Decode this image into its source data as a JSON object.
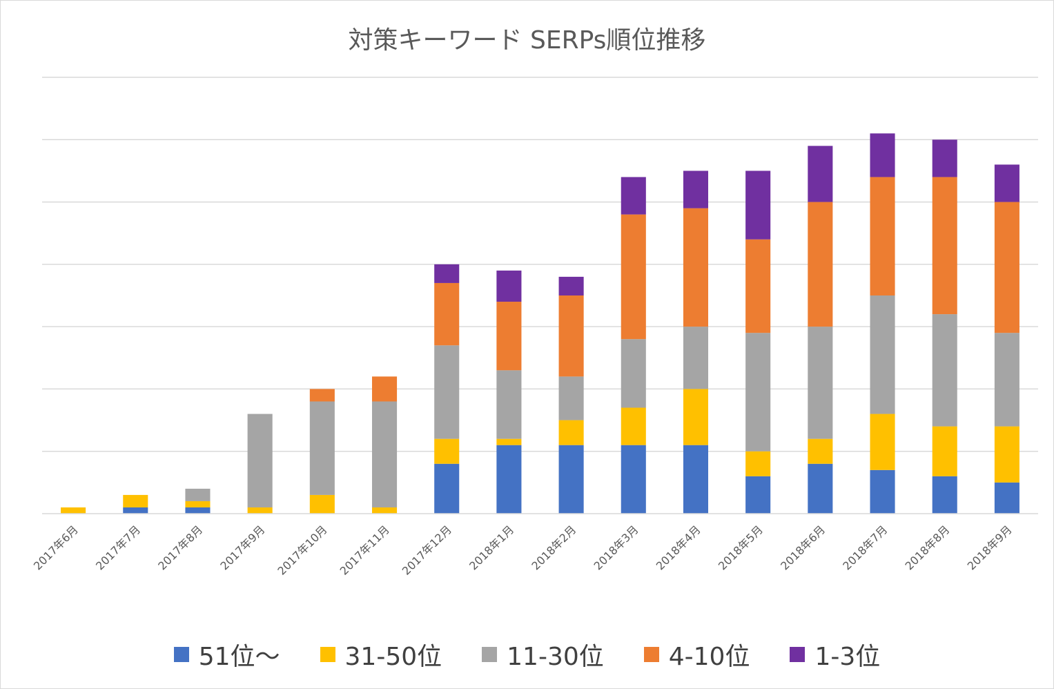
{
  "chart_data": {
    "type": "bar",
    "stacked": true,
    "title": "対策キーワード SERPs順位推移",
    "xlabel": "",
    "ylabel": "",
    "ylim": [
      0,
      70
    ],
    "y_gridlines": [
      0,
      10,
      20,
      30,
      40,
      50,
      60,
      70
    ],
    "y_tick_labels_shown": false,
    "grid": true,
    "legend_position": "bottom",
    "categories": [
      "2017年6月",
      "2017年7月",
      "2017年8月",
      "2017年9月",
      "2017年10月",
      "2017年11月",
      "2017年12月",
      "2018年1月",
      "2018年2月",
      "2018年3月",
      "2018年4月",
      "2018年5月",
      "2018年6月",
      "2018年7月",
      "2018年8月",
      "2018年9月"
    ],
    "series": [
      {
        "name": "51位～",
        "color": "#4472c4",
        "values": [
          0,
          1,
          1,
          0,
          0,
          0,
          8,
          11,
          11,
          11,
          11,
          6,
          8,
          7,
          6,
          5
        ]
      },
      {
        "name": "31-50位",
        "color": "#ffc000",
        "values": [
          1,
          2,
          1,
          1,
          3,
          1,
          4,
          1,
          4,
          6,
          9,
          4,
          4,
          9,
          8,
          9
        ]
      },
      {
        "name": "11-30位",
        "color": "#a5a5a5",
        "values": [
          0,
          0,
          2,
          15,
          15,
          17,
          15,
          11,
          7,
          11,
          10,
          19,
          18,
          19,
          18,
          15
        ]
      },
      {
        "name": "4-10位",
        "color": "#ed7d31",
        "values": [
          0,
          0,
          0,
          0,
          2,
          4,
          10,
          11,
          13,
          20,
          19,
          15,
          20,
          19,
          22,
          21
        ]
      },
      {
        "name": "1-3位",
        "color": "#7030a0",
        "values": [
          0,
          0,
          0,
          0,
          0,
          0,
          3,
          5,
          3,
          6,
          6,
          11,
          9,
          7,
          6,
          6
        ]
      }
    ]
  }
}
